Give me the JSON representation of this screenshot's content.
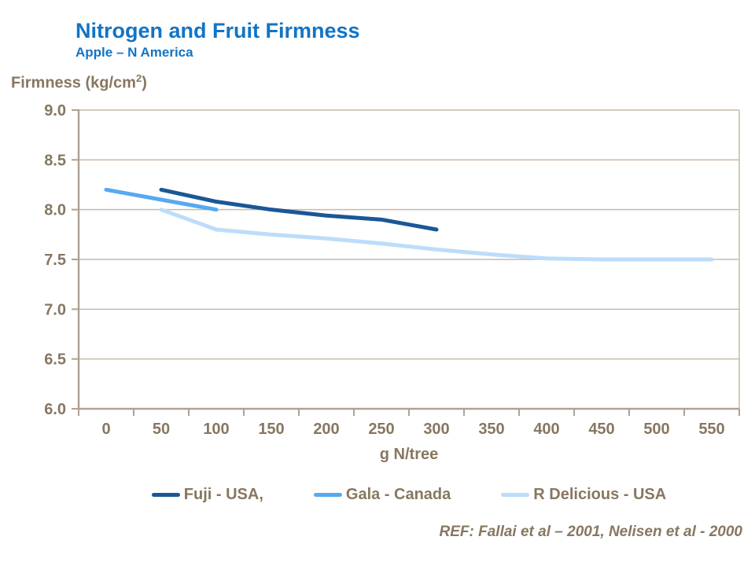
{
  "header": {
    "title": "Nitrogen and Fruit Firmness",
    "subtitle": "Apple – N America"
  },
  "colors": {
    "accent_blue": "#1274C5",
    "text_brown": "#877760",
    "axis_tan": "#AFA294",
    "grid_tan": "#C6BAAA",
    "fuji_dark_blue": "#1A5796",
    "gala_medium_blue": "#57A9F0",
    "rdelicious_light_blue": "#BCDDFA"
  },
  "chart_data": {
    "type": "line",
    "title": "Nitrogen and Fruit Firmness",
    "subtitle": "Apple – N America",
    "xlabel": "g N/tree",
    "ylabel_prefix": "Firmness (kg/cm",
    "ylabel_sup": "2",
    "ylabel_suffix": ")",
    "categories": [
      0,
      50,
      100,
      150,
      200,
      250,
      300,
      350,
      400,
      450,
      500,
      550
    ],
    "y_ticklabels": [
      "6.0",
      "6.5",
      "7.0",
      "7.5",
      "8.0",
      "8.5",
      "9.0"
    ],
    "ylim": [
      6.0,
      9.0
    ],
    "grid": "horizontal",
    "legend_position": "bottom",
    "series": [
      {
        "name": "Fuji - USA,",
        "color": "#1A5796",
        "values": [
          null,
          8.2,
          8.08,
          8.0,
          7.94,
          7.9,
          7.8,
          null,
          null,
          null,
          null,
          null
        ]
      },
      {
        "name": "Gala - Canada",
        "color": "#57A9F0",
        "values": [
          8.2,
          8.1,
          8.0,
          null,
          null,
          null,
          null,
          null,
          null,
          null,
          null,
          null
        ]
      },
      {
        "name": "R Delicious - USA",
        "color": "#BCDDFA",
        "values": [
          null,
          8.0,
          7.8,
          7.75,
          7.71,
          7.66,
          7.6,
          7.55,
          7.51,
          7.5,
          7.5,
          7.5
        ]
      }
    ]
  },
  "footer": {
    "ref": "REF: Fallai et al – 2001, Nelisen et al - 2000"
  }
}
